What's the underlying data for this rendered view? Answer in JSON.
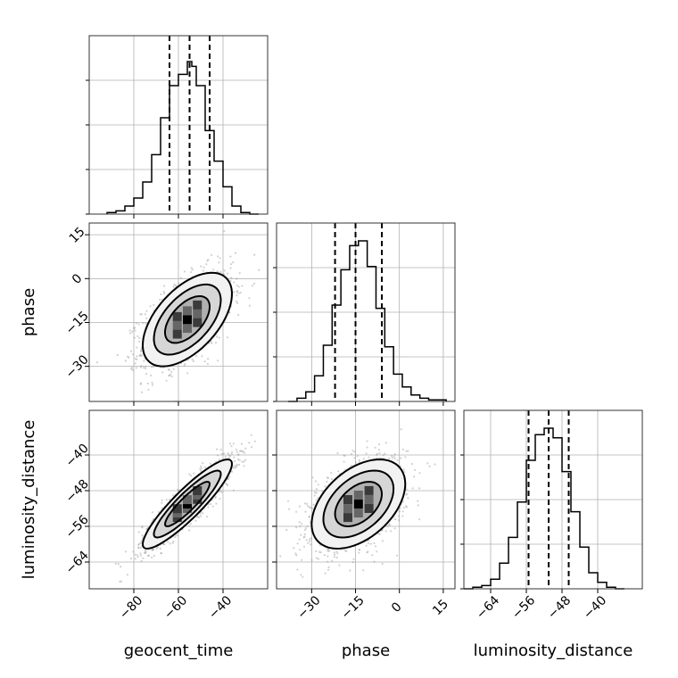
{
  "chart_data": {
    "type": "corner",
    "parameters": [
      "geocent_time",
      "phase",
      "luminosity_distance"
    ],
    "axis_labels": {
      "x": [
        "geocent_time",
        "phase",
        "luminosity_distance"
      ],
      "y": [
        "phase",
        "luminosity_distance"
      ]
    },
    "ranges": {
      "geocent_time": [
        -100,
        -20
      ],
      "phase": [
        -42,
        19
      ],
      "luminosity_distance": [
        -70,
        -30
      ]
    },
    "ticks": {
      "geocent_time": [
        -80,
        -60,
        -40
      ],
      "phase": [
        -30,
        -15,
        0,
        15
      ],
      "luminosity_distance": [
        -64,
        -56,
        -48,
        -40
      ]
    },
    "histograms": [
      {
        "parameter": "geocent_time",
        "bin_edges": [
          -92,
          -88,
          -84,
          -80,
          -76,
          -72,
          -68,
          -64,
          -60,
          -56,
          -54,
          -52,
          -48,
          -44,
          -40,
          -36,
          -32,
          -28,
          -24
        ],
        "counts": [
          0.01,
          0.02,
          0.05,
          0.1,
          0.2,
          0.37,
          0.6,
          0.8,
          0.87,
          0.95,
          0.92,
          0.8,
          0.52,
          0.33,
          0.17,
          0.05,
          0.01,
          0.0
        ],
        "quantiles": [
          -64,
          -55,
          -46
        ]
      },
      {
        "parameter": "phase",
        "bin_edges": [
          -38,
          -35,
          -32,
          -29,
          -26,
          -23,
          -20,
          -17,
          -14,
          -11,
          -8,
          -5,
          -2,
          1,
          4,
          7,
          10,
          13,
          16
        ],
        "counts": [
          0.0,
          0.02,
          0.06,
          0.16,
          0.35,
          0.6,
          0.82,
          0.97,
          1.0,
          0.84,
          0.58,
          0.34,
          0.17,
          0.09,
          0.04,
          0.02,
          0.01,
          0.01
        ],
        "quantiles": [
          -22,
          -15,
          -6
        ]
      },
      {
        "parameter": "luminosity_distance",
        "bin_edges": [
          -70,
          -68,
          -66,
          -64,
          -62,
          -60,
          -58,
          -56,
          -54,
          -52,
          -50,
          -48,
          -46,
          -44,
          -42,
          -40,
          -38,
          -36,
          -34
        ],
        "counts": [
          0.0,
          0.01,
          0.02,
          0.06,
          0.16,
          0.32,
          0.54,
          0.8,
          0.96,
          1.0,
          0.94,
          0.73,
          0.48,
          0.26,
          0.1,
          0.04,
          0.01,
          0.0
        ],
        "quantiles": [
          -55.5,
          -51,
          -46.5
        ]
      }
    ],
    "joint_distributions": [
      {
        "x": "geocent_time",
        "y": "phase",
        "mean": [
          -56,
          -14
        ],
        "std": [
          10,
          8
        ],
        "correlation": 0.55
      },
      {
        "x": "geocent_time",
        "y": "luminosity_distance",
        "mean": [
          -56,
          -51
        ],
        "std": [
          10,
          5
        ],
        "correlation": 0.9
      },
      {
        "x": "phase",
        "y": "luminosity_distance",
        "mean": [
          -14,
          -51
        ],
        "std": [
          8,
          5
        ],
        "correlation": 0.45
      }
    ],
    "contour_levels_sigma": [
      1,
      1.5,
      2
    ],
    "quantile_line_style": "dashed",
    "grid": true
  }
}
